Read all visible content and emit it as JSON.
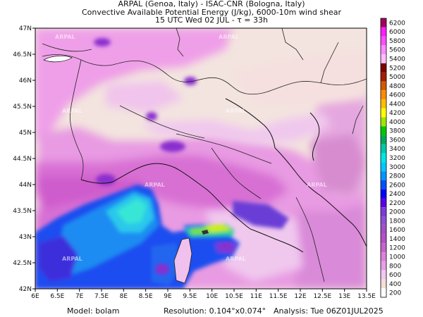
{
  "header": {
    "line1": "ARPAL (Genoa, Italy)  -  ISAC-CNR (Bologna, Italy)",
    "line2": "Convective Available Potential Energy (J/kg), 6000-10m wind shear",
    "line3": "15 UTC Wed 02 JUL  -  τ = 33h"
  },
  "map": {
    "lat_ticks": [
      "47N",
      "46.5N",
      "46N",
      "45.5N",
      "45N",
      "44.5N",
      "44N",
      "43.5N",
      "43N",
      "42.5N",
      "42N"
    ],
    "lon_ticks": [
      "6E",
      "6.5E",
      "7E",
      "7.5E",
      "8E",
      "8.5E",
      "9E",
      "9.5E",
      "10E",
      "10.5E",
      "11E",
      "11.5E",
      "12E",
      "12.5E",
      "13E",
      "13.5E"
    ],
    "watermark": "ARPAL"
  },
  "colorbar": {
    "levels": [
      "6200",
      "6000",
      "5800",
      "5600",
      "5400",
      "5200",
      "5000",
      "4800",
      "4600",
      "4400",
      "4200",
      "4000",
      "3800",
      "3600",
      "3400",
      "3200",
      "3000",
      "2800",
      "2600",
      "2400",
      "2200",
      "2000",
      "1800",
      "1600",
      "1400",
      "1200",
      "1000",
      "800",
      "600",
      "400",
      "200"
    ],
    "colors": [
      "#a4005a",
      "#ff1cff",
      "#ff4dff",
      "#ff8cff",
      "#ffc0ff",
      "#7c0000",
      "#a61c00",
      "#d05a00",
      "#ff8c00",
      "#ffbe00",
      "#ffff00",
      "#a0e600",
      "#00c800",
      "#00aa5a",
      "#00c8aa",
      "#00e6e6",
      "#00c8ff",
      "#0096ff",
      "#0050ff",
      "#0000ff",
      "#5a00e6",
      "#7a3cdc",
      "#8c50d2",
      "#a050c8",
      "#b450c8",
      "#c864c8",
      "#dc82dc",
      "#e6a0e6",
      "#f0c8f0",
      "#f5ddd8",
      "#ffffff"
    ]
  },
  "footer": {
    "model": "Model: bolam",
    "resolution": "Resolution: 0.104°x0.074°",
    "analysis": "Analysis: Tue 06Z01JUL2025"
  }
}
